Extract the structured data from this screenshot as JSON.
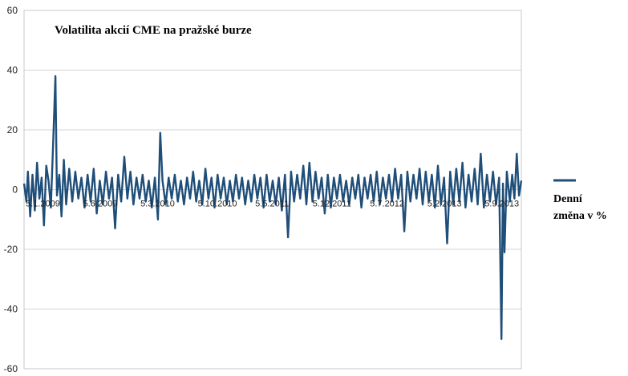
{
  "chart_data": {
    "type": "line",
    "title": "Volatilita akcií CME na pražské burze",
    "xlabel": "",
    "ylabel": "",
    "ylim": [
      -60,
      60
    ],
    "yticks": [
      -60,
      -40,
      -20,
      0,
      20,
      40,
      60
    ],
    "x_tick_labels": [
      "5.1.2009",
      "5.6.2009",
      "5.3.2010",
      "5.10.2010",
      "5.5.2011",
      "5.12.2011",
      "5.7.2012",
      "5.2.2013",
      "5.9.2013"
    ],
    "x_tick_positions": [
      0,
      150,
      300,
      450,
      600,
      750,
      900,
      1050,
      1200
    ],
    "x_range": [
      0,
      1300
    ],
    "grid": true,
    "legend": {
      "position": "right",
      "lines": [
        "Denní",
        "změna v %"
      ]
    },
    "series": [
      {
        "name": "Denní změna v %",
        "color": "#1f4e79",
        "points": [
          [
            0,
            2
          ],
          [
            6,
            -4
          ],
          [
            10,
            6
          ],
          [
            16,
            -9
          ],
          [
            22,
            5
          ],
          [
            28,
            -7
          ],
          [
            34,
            9
          ],
          [
            40,
            -3
          ],
          [
            46,
            4
          ],
          [
            52,
            -12
          ],
          [
            58,
            8
          ],
          [
            64,
            3
          ],
          [
            70,
            -6
          ],
          [
            76,
            15
          ],
          [
            82,
            38
          ],
          [
            86,
            -2
          ],
          [
            92,
            5
          ],
          [
            98,
            -9
          ],
          [
            104,
            10
          ],
          [
            110,
            -5
          ],
          [
            118,
            7
          ],
          [
            126,
            -4
          ],
          [
            134,
            6
          ],
          [
            142,
            -3
          ],
          [
            150,
            4
          ],
          [
            158,
            -6
          ],
          [
            166,
            5
          ],
          [
            174,
            -4
          ],
          [
            182,
            7
          ],
          [
            190,
            -8
          ],
          [
            198,
            3
          ],
          [
            206,
            -5
          ],
          [
            214,
            6
          ],
          [
            222,
            -3
          ],
          [
            230,
            4
          ],
          [
            238,
            -13
          ],
          [
            246,
            5
          ],
          [
            254,
            -4
          ],
          [
            262,
            11
          ],
          [
            270,
            -3
          ],
          [
            278,
            6
          ],
          [
            286,
            -5
          ],
          [
            294,
            4
          ],
          [
            302,
            -3
          ],
          [
            310,
            5
          ],
          [
            318,
            -4
          ],
          [
            326,
            3
          ],
          [
            334,
            -6
          ],
          [
            342,
            4
          ],
          [
            350,
            -10
          ],
          [
            356,
            19
          ],
          [
            362,
            3
          ],
          [
            370,
            -5
          ],
          [
            378,
            4
          ],
          [
            386,
            -3
          ],
          [
            394,
            5
          ],
          [
            402,
            -4
          ],
          [
            410,
            3
          ],
          [
            418,
            -5
          ],
          [
            426,
            4
          ],
          [
            434,
            -3
          ],
          [
            442,
            6
          ],
          [
            450,
            -4
          ],
          [
            458,
            3
          ],
          [
            466,
            -5
          ],
          [
            474,
            7
          ],
          [
            482,
            -3
          ],
          [
            490,
            4
          ],
          [
            498,
            -6
          ],
          [
            506,
            5
          ],
          [
            514,
            -3
          ],
          [
            522,
            4
          ],
          [
            530,
            -5
          ],
          [
            538,
            3
          ],
          [
            546,
            -4
          ],
          [
            554,
            5
          ],
          [
            562,
            -3
          ],
          [
            570,
            4
          ],
          [
            578,
            -5
          ],
          [
            586,
            3
          ],
          [
            594,
            -4
          ],
          [
            602,
            5
          ],
          [
            610,
            -3
          ],
          [
            618,
            4
          ],
          [
            626,
            -6
          ],
          [
            634,
            5
          ],
          [
            642,
            -4
          ],
          [
            650,
            3
          ],
          [
            658,
            -5
          ],
          [
            666,
            4
          ],
          [
            674,
            -7
          ],
          [
            682,
            5
          ],
          [
            690,
            -16
          ],
          [
            698,
            6
          ],
          [
            706,
            -4
          ],
          [
            714,
            5
          ],
          [
            722,
            -3
          ],
          [
            730,
            8
          ],
          [
            738,
            -5
          ],
          [
            746,
            9
          ],
          [
            754,
            -4
          ],
          [
            762,
            6
          ],
          [
            770,
            -3
          ],
          [
            778,
            4
          ],
          [
            786,
            -8
          ],
          [
            794,
            5
          ],
          [
            802,
            -6
          ],
          [
            810,
            4
          ],
          [
            818,
            -3
          ],
          [
            826,
            5
          ],
          [
            834,
            -4
          ],
          [
            842,
            3
          ],
          [
            850,
            -5
          ],
          [
            858,
            4
          ],
          [
            866,
            -3
          ],
          [
            874,
            5
          ],
          [
            882,
            -6
          ],
          [
            890,
            4
          ],
          [
            898,
            -3
          ],
          [
            906,
            5
          ],
          [
            914,
            -4
          ],
          [
            922,
            6
          ],
          [
            930,
            -5
          ],
          [
            938,
            4
          ],
          [
            946,
            -3
          ],
          [
            954,
            5
          ],
          [
            962,
            -4
          ],
          [
            970,
            7
          ],
          [
            978,
            -3
          ],
          [
            986,
            5
          ],
          [
            994,
            -14
          ],
          [
            1002,
            6
          ],
          [
            1010,
            -4
          ],
          [
            1018,
            5
          ],
          [
            1026,
            -3
          ],
          [
            1034,
            7
          ],
          [
            1042,
            -5
          ],
          [
            1050,
            6
          ],
          [
            1058,
            -4
          ],
          [
            1066,
            5
          ],
          [
            1074,
            -6
          ],
          [
            1082,
            8
          ],
          [
            1090,
            -5
          ],
          [
            1098,
            4
          ],
          [
            1106,
            -18
          ],
          [
            1114,
            6
          ],
          [
            1122,
            -5
          ],
          [
            1130,
            7
          ],
          [
            1138,
            -4
          ],
          [
            1146,
            9
          ],
          [
            1154,
            -6
          ],
          [
            1162,
            5
          ],
          [
            1170,
            -4
          ],
          [
            1178,
            7
          ],
          [
            1186,
            -5
          ],
          [
            1194,
            12
          ],
          [
            1202,
            -6
          ],
          [
            1210,
            5
          ],
          [
            1218,
            -4
          ],
          [
            1226,
            6
          ],
          [
            1234,
            -5
          ],
          [
            1242,
            4
          ],
          [
            1248,
            -50
          ],
          [
            1252,
            2
          ],
          [
            1256,
            -21
          ],
          [
            1262,
            6
          ],
          [
            1270,
            -4
          ],
          [
            1276,
            5
          ],
          [
            1282,
            -3
          ],
          [
            1288,
            12
          ],
          [
            1294,
            -2
          ],
          [
            1300,
            3
          ]
        ]
      }
    ]
  }
}
